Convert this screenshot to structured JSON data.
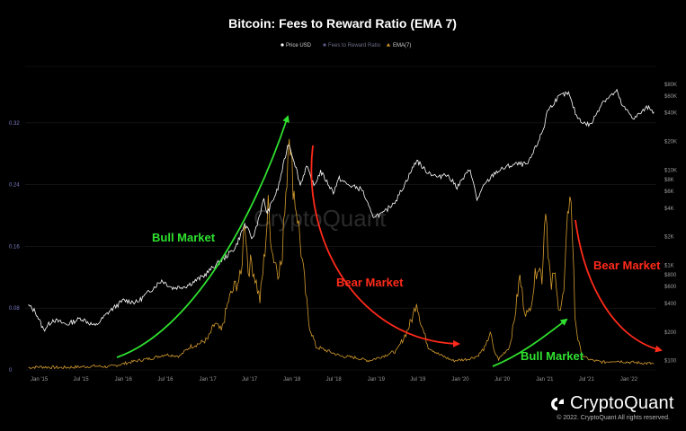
{
  "chart_data": {
    "type": "line",
    "title": "Bitcoin: Fees to Reward Ratio (EMA 7)",
    "legend_position": "top-center",
    "grid": true,
    "series": [
      {
        "name": "Price USD",
        "color": "#ffffff",
        "axis": "right",
        "x": [
          "2014-11-15",
          "2014-12-15",
          "2015-01-20",
          "2015-03-01",
          "2015-05-01",
          "2015-07-01",
          "2015-09-01",
          "2015-11-01",
          "2016-01-01",
          "2016-03-01",
          "2016-06-15",
          "2016-08-01",
          "2016-10-01",
          "2016-12-15",
          "2017-02-01",
          "2017-03-15",
          "2017-05-01",
          "2017-06-10",
          "2017-07-15",
          "2017-09-01",
          "2017-09-15",
          "2017-11-01",
          "2017-12-17",
          "2018-01-15",
          "2018-02-06",
          "2018-03-05",
          "2018-04-06",
          "2018-05-05",
          "2018-06-29",
          "2018-07-25",
          "2018-09-01",
          "2018-11-01",
          "2018-12-15",
          "2019-02-01",
          "2019-04-01",
          "2019-05-15",
          "2019-06-26",
          "2019-08-01",
          "2019-09-30",
          "2019-10-27",
          "2019-12-18",
          "2020-02-13",
          "2020-03-13",
          "2020-04-15",
          "2020-06-01",
          "2020-07-27",
          "2020-09-01",
          "2020-10-20",
          "2020-11-30",
          "2020-12-31",
          "2021-01-08",
          "2021-02-21",
          "2021-03-14",
          "2021-04-14",
          "2021-05-19",
          "2021-06-22",
          "2021-07-20",
          "2021-09-07",
          "2021-10-20",
          "2021-11-10",
          "2021-12-04",
          "2022-01-24",
          "2022-03-28",
          "2022-04-20"
        ],
        "values": [
          380,
          330,
          210,
          270,
          240,
          280,
          230,
          330,
          430,
          410,
          700,
          580,
          610,
          780,
          1000,
          1200,
          1550,
          2700,
          1900,
          4900,
          3500,
          6400,
          19500,
          11500,
          7000,
          11000,
          6800,
          9700,
          5900,
          8200,
          7000,
          6300,
          3300,
          3500,
          5000,
          8000,
          12800,
          10000,
          8300,
          9400,
          6700,
          10300,
          4900,
          7000,
          9500,
          11000,
          11600,
          11500,
          19000,
          29000,
          40000,
          56000,
          61000,
          64000,
          37000,
          31000,
          30000,
          52000,
          62000,
          67000,
          47000,
          35000,
          47000,
          41000
        ]
      },
      {
        "name": "Fees to Reward Ratio",
        "color": "#5b5b8a",
        "axis": "left"
      },
      {
        "name": "EMA(7)",
        "color": "#d39b2e",
        "axis": "left",
        "x": [
          "2014-11-15",
          "2015-01-01",
          "2015-04-01",
          "2015-07-01",
          "2015-09-01",
          "2015-11-01",
          "2016-01-01",
          "2016-03-01",
          "2016-05-01",
          "2016-07-01",
          "2016-09-01",
          "2016-10-15",
          "2016-12-01",
          "2017-01-01",
          "2017-02-01",
          "2017-03-01",
          "2017-04-01",
          "2017-05-01",
          "2017-05-25",
          "2017-06-10",
          "2017-06-25",
          "2017-07-10",
          "2017-07-25",
          "2017-08-15",
          "2017-09-01",
          "2017-09-20",
          "2017-10-10",
          "2017-11-01",
          "2017-11-20",
          "2017-12-01",
          "2017-12-10",
          "2017-12-20",
          "2017-12-28",
          "2018-01-10",
          "2018-01-25",
          "2018-02-15",
          "2018-03-15",
          "2018-04-15",
          "2018-06-01",
          "2018-08-01",
          "2018-10-01",
          "2018-12-01",
          "2019-02-01",
          "2019-04-01",
          "2019-05-15",
          "2019-06-10",
          "2019-06-25",
          "2019-07-15",
          "2019-08-15",
          "2019-10-01",
          "2019-12-01",
          "2020-02-01",
          "2020-03-15",
          "2020-04-20",
          "2020-05-10",
          "2020-05-25",
          "2020-06-15",
          "2020-08-01",
          "2020-08-20",
          "2020-09-15",
          "2020-10-05",
          "2020-10-20",
          "2020-11-10",
          "2020-12-01",
          "2020-12-20",
          "2021-01-05",
          "2021-01-15",
          "2021-01-30",
          "2021-02-10",
          "2021-02-25",
          "2021-03-10",
          "2021-03-25",
          "2021-04-10",
          "2021-04-20",
          "2021-05-01",
          "2021-05-12",
          "2021-05-25",
          "2021-06-10",
          "2021-07-01",
          "2021-08-01",
          "2021-09-15",
          "2021-11-01",
          "2022-01-01",
          "2022-03-01",
          "2022-04-20"
        ],
        "values": [
          0.003,
          0.004,
          0.003,
          0.004,
          0.005,
          0.004,
          0.008,
          0.012,
          0.015,
          0.02,
          0.018,
          0.03,
          0.035,
          0.04,
          0.06,
          0.05,
          0.09,
          0.11,
          0.12,
          0.2,
          0.13,
          0.14,
          0.12,
          0.09,
          0.14,
          0.21,
          0.15,
          0.13,
          0.14,
          0.22,
          0.25,
          0.33,
          0.27,
          0.23,
          0.2,
          0.14,
          0.06,
          0.03,
          0.025,
          0.018,
          0.016,
          0.012,
          0.018,
          0.025,
          0.05,
          0.07,
          0.09,
          0.06,
          0.03,
          0.02,
          0.012,
          0.014,
          0.018,
          0.03,
          0.05,
          0.025,
          0.014,
          0.03,
          0.06,
          0.12,
          0.08,
          0.07,
          0.1,
          0.14,
          0.12,
          0.22,
          0.16,
          0.1,
          0.13,
          0.09,
          0.08,
          0.1,
          0.19,
          0.24,
          0.18,
          0.07,
          0.04,
          0.02,
          0.015,
          0.012,
          0.01,
          0.012,
          0.01,
          0.009,
          0.008
        ]
      }
    ],
    "y_left": {
      "ticks": [
        "0",
        "0.08",
        "0.16",
        "0.24",
        "0.32"
      ],
      "values": [
        0,
        0.08,
        0.16,
        0.24,
        0.32
      ],
      "ylim": [
        0,
        0.4
      ]
    },
    "y_right": {
      "scale": "log",
      "ticks": [
        "$100",
        "$200",
        "$400",
        "$600",
        "$800",
        "$1K",
        "$2K",
        "$4K",
        "$6K",
        "$8K",
        "$10K",
        "$20K",
        "$40K",
        "$60K",
        "$80K"
      ],
      "values": [
        100,
        200,
        400,
        600,
        800,
        1000,
        2000,
        4000,
        6000,
        8000,
        10000,
        20000,
        40000,
        60000,
        80000
      ],
      "ylim": [
        80,
        140000
      ]
    },
    "x_axis": {
      "ticks": [
        "Jan '15",
        "Jul '15",
        "Jan '16",
        "Jul '16",
        "Jan '17",
        "Jul '17",
        "Jan '18",
        "Jul '18",
        "Jan '19",
        "Jul '19",
        "Jan '20",
        "Jul '20",
        "Jan '21",
        "Jul '21",
        "Jan '22"
      ],
      "dates": [
        "2015-01-01",
        "2015-07-01",
        "2016-01-01",
        "2016-07-01",
        "2017-01-01",
        "2017-07-01",
        "2018-01-01",
        "2018-07-01",
        "2019-01-01",
        "2019-07-01",
        "2020-01-01",
        "2020-07-01",
        "2021-01-01",
        "2021-07-01",
        "2022-01-01"
      ],
      "range": [
        "2014-11-01",
        "2022-04-30"
      ]
    },
    "annotations": [
      {
        "text": "Bull Market",
        "color": "#2fe02f"
      },
      {
        "text": "Bear Market",
        "color": "#ff2a1a"
      },
      {
        "text": "Bear Market",
        "color": "#ff2a1a"
      },
      {
        "text": "Bull Market",
        "color": "#2fe02f"
      }
    ],
    "watermark": "CryptoQuant"
  },
  "footer": {
    "brand": "CryptoQuant",
    "copyright": "© 2022. CryptoQuant All rights reserved."
  }
}
